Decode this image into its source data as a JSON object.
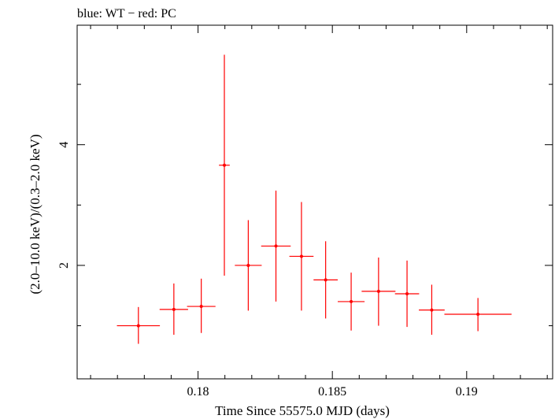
{
  "chart_data": {
    "type": "scatter",
    "title": "blue: WT − red: PC",
    "xlabel": "Time Since 55575.0 MJD (days)",
    "ylabel": "(2.0–10.0 keV)/(0.3–2.0 keV)",
    "xlim": [
      0.1755,
      0.1932
    ],
    "ylim": [
      0.12,
      5.98
    ],
    "x_ticks": [
      0.18,
      0.185,
      0.19
    ],
    "x_tick_labels": [
      "0.18",
      "0.185",
      "0.19"
    ],
    "y_ticks": [
      2,
      4
    ],
    "y_tick_labels": [
      "2",
      "4"
    ],
    "x_minor_step": 0.001,
    "y_minor_step": 1,
    "grid": false,
    "series": [
      {
        "color": "#ff0000",
        "points": [
          {
            "x": 0.17778,
            "xerr": 0.0008,
            "y": 1.0,
            "ylo": 0.7,
            "yhi": 1.31
          },
          {
            "x": 0.1791,
            "xerr": 0.00053,
            "y": 1.27,
            "ylo": 0.85,
            "yhi": 1.7
          },
          {
            "x": 0.18012,
            "xerr": 0.00053,
            "y": 1.32,
            "ylo": 0.88,
            "yhi": 1.78
          },
          {
            "x": 0.18098,
            "xerr": 0.0002,
            "y": 3.66,
            "ylo": 1.83,
            "yhi": 5.49
          },
          {
            "x": 0.18187,
            "xerr": 0.0005,
            "y": 2.0,
            "ylo": 1.25,
            "yhi": 2.75
          },
          {
            "x": 0.1829,
            "xerr": 0.00055,
            "y": 2.32,
            "ylo": 1.4,
            "yhi": 3.24
          },
          {
            "x": 0.18385,
            "xerr": 0.00045,
            "y": 2.15,
            "ylo": 1.25,
            "yhi": 3.05
          },
          {
            "x": 0.18475,
            "xerr": 0.00045,
            "y": 1.76,
            "ylo": 1.12,
            "yhi": 2.4
          },
          {
            "x": 0.1857,
            "xerr": 0.0005,
            "y": 1.4,
            "ylo": 0.92,
            "yhi": 1.88
          },
          {
            "x": 0.18672,
            "xerr": 0.00063,
            "y": 1.57,
            "ylo": 1.0,
            "yhi": 2.13
          },
          {
            "x": 0.18778,
            "xerr": 0.00045,
            "y": 1.53,
            "ylo": 0.98,
            "yhi": 2.08
          },
          {
            "x": 0.1887,
            "xerr": 0.00048,
            "y": 1.26,
            "ylo": 0.85,
            "yhi": 1.68
          },
          {
            "x": 0.19042,
            "xerr": 0.00125,
            "y": 1.19,
            "ylo": 0.91,
            "yhi": 1.46
          }
        ]
      }
    ]
  }
}
